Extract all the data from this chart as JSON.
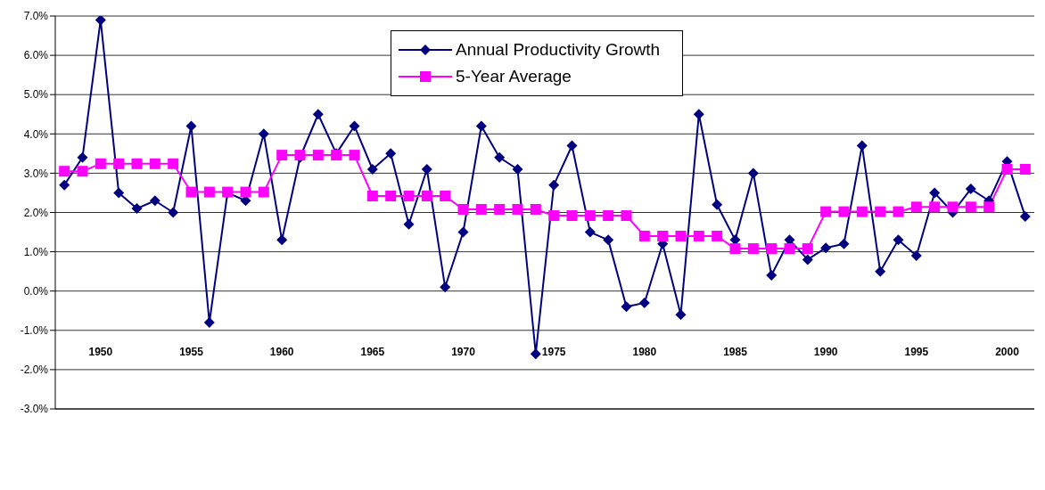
{
  "chart_data": {
    "type": "line",
    "x": [
      1948,
      1949,
      1950,
      1951,
      1952,
      1953,
      1954,
      1955,
      1956,
      1957,
      1958,
      1959,
      1960,
      1961,
      1962,
      1963,
      1964,
      1965,
      1966,
      1967,
      1968,
      1969,
      1970,
      1971,
      1972,
      1973,
      1974,
      1975,
      1976,
      1977,
      1978,
      1979,
      1980,
      1981,
      1982,
      1983,
      1984,
      1985,
      1986,
      1987,
      1988,
      1989,
      1990,
      1991,
      1992,
      1993,
      1994,
      1995,
      1996,
      1997,
      1998,
      1999,
      2000,
      2001
    ],
    "series": [
      {
        "name": "Annual Productivity Growth",
        "color": "#000080",
        "marker": "diamond",
        "values": [
          2.7,
          3.4,
          6.9,
          2.5,
          2.1,
          2.3,
          2.0,
          4.2,
          -0.8,
          2.5,
          2.3,
          4.0,
          1.3,
          3.4,
          4.5,
          3.5,
          4.2,
          3.1,
          3.5,
          1.7,
          3.1,
          0.1,
          1.5,
          4.2,
          3.4,
          3.1,
          -1.6,
          2.7,
          3.7,
          1.5,
          1.3,
          -0.4,
          -0.3,
          1.2,
          -0.6,
          4.5,
          2.2,
          1.3,
          3.0,
          0.4,
          1.3,
          0.8,
          1.1,
          1.2,
          3.7,
          0.5,
          1.3,
          0.9,
          2.5,
          2.0,
          2.6,
          2.3,
          3.3,
          1.9
        ]
      },
      {
        "name": "5-Year Average",
        "color": "#ff00ff",
        "marker": "square",
        "values": [
          3.05,
          3.05,
          3.24,
          3.24,
          3.24,
          3.24,
          3.24,
          2.52,
          2.52,
          2.52,
          2.52,
          2.52,
          3.46,
          3.46,
          3.46,
          3.46,
          3.46,
          2.42,
          2.42,
          2.42,
          2.42,
          2.42,
          2.08,
          2.08,
          2.08,
          2.08,
          2.08,
          1.92,
          1.92,
          1.92,
          1.92,
          1.92,
          1.4,
          1.4,
          1.4,
          1.4,
          1.4,
          1.08,
          1.08,
          1.08,
          1.08,
          1.08,
          2.02,
          2.02,
          2.02,
          2.02,
          2.02,
          2.14,
          2.14,
          2.14,
          2.14,
          2.14,
          3.1,
          3.1
        ]
      }
    ],
    "xlim": [
      1947.5,
      2001.5
    ],
    "xticks": [
      1950,
      1955,
      1960,
      1965,
      1970,
      1975,
      1980,
      1985,
      1990,
      1995,
      2000
    ],
    "ylim": [
      -3,
      7
    ],
    "yticks": [
      {
        "value": -3,
        "label": "-3.0%"
      },
      {
        "value": -2,
        "label": "-2.0%"
      },
      {
        "value": -1,
        "label": "-1.0%"
      },
      {
        "value": 0,
        "label": "0.0%"
      },
      {
        "value": 1,
        "label": "1.0%"
      },
      {
        "value": 2,
        "label": "2.0%"
      },
      {
        "value": 3,
        "label": "3.0%"
      },
      {
        "value": 4,
        "label": "4.0%"
      },
      {
        "value": 5,
        "label": "5.0%"
      },
      {
        "value": 6,
        "label": "6.0%"
      },
      {
        "value": 7,
        "label": "7.0%"
      }
    ],
    "grid": "y",
    "legend": "top"
  }
}
